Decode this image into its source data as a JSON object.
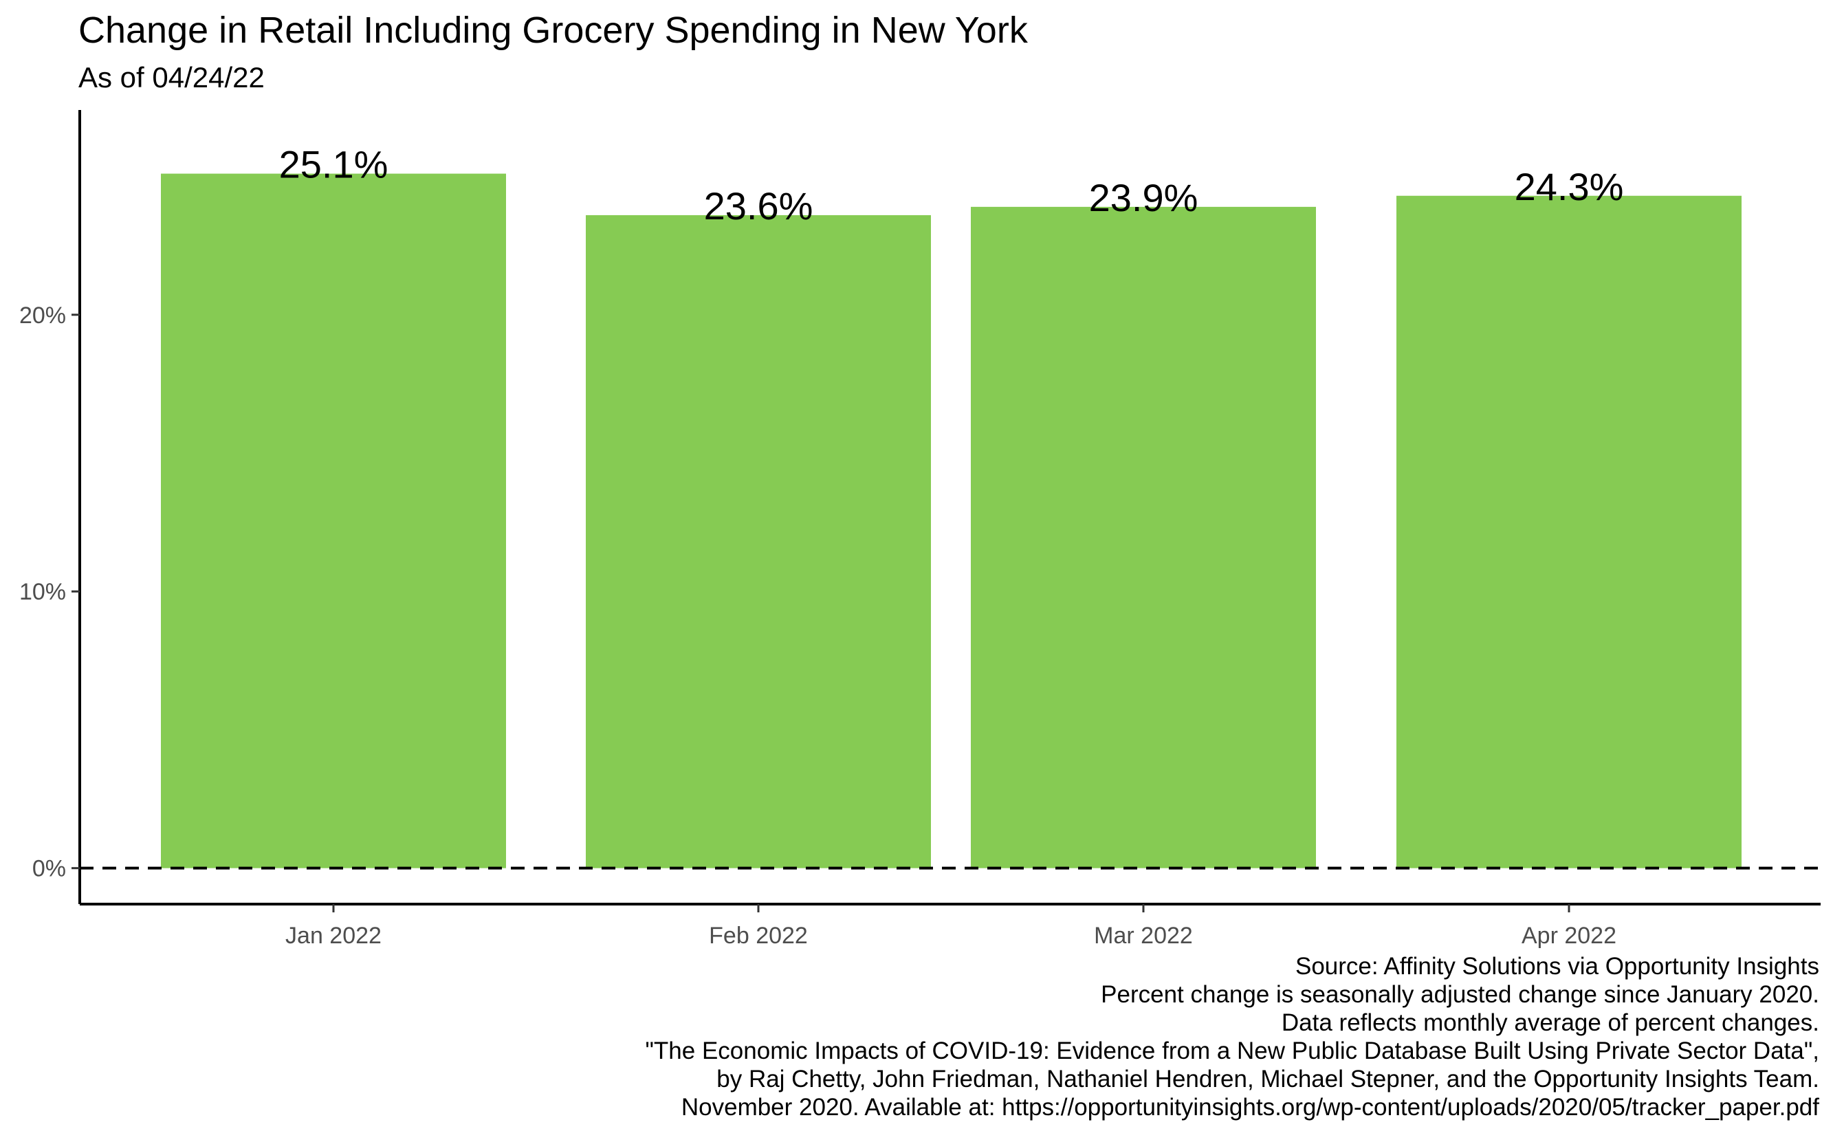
{
  "chart_data": {
    "type": "bar",
    "title": "Change in Retail Including Grocery Spending in New York",
    "subtitle": "As of 04/24/22",
    "categories": [
      "Jan 2022",
      "Feb 2022",
      "Mar 2022",
      "Apr 2022"
    ],
    "values": [
      25.1,
      23.6,
      23.9,
      24.3
    ],
    "value_labels": [
      "25.1%",
      "23.6%",
      "23.9%",
      "24.3%"
    ],
    "y_ticks": [
      0,
      10,
      20
    ],
    "y_tick_labels": [
      "0%",
      "10%",
      "20%"
    ],
    "ylim": [
      -1.3,
      27.4
    ],
    "xlabel": "",
    "ylabel": "",
    "reference_line": {
      "value": 0,
      "style": "dashed"
    },
    "grid": false,
    "legend": "none",
    "bar_color": "#86CB53",
    "caption": [
      "Source: Affinity Solutions via Opportunity Insights",
      "Percent change is seasonally adjusted change since January 2020.",
      "Data reflects monthly average of percent changes.",
      "\"The Economic Impacts of COVID-19: Evidence from a New Public Database Built Using Private Sector Data\",",
      "by Raj Chetty, John Friedman, Nathaniel Hendren, Michael Stepner, and the Opportunity Insights Team.",
      "November 2020. Available at: https://opportunityinsights.org/wp-content/uploads/2020/05/tracker_paper.pdf"
    ]
  }
}
